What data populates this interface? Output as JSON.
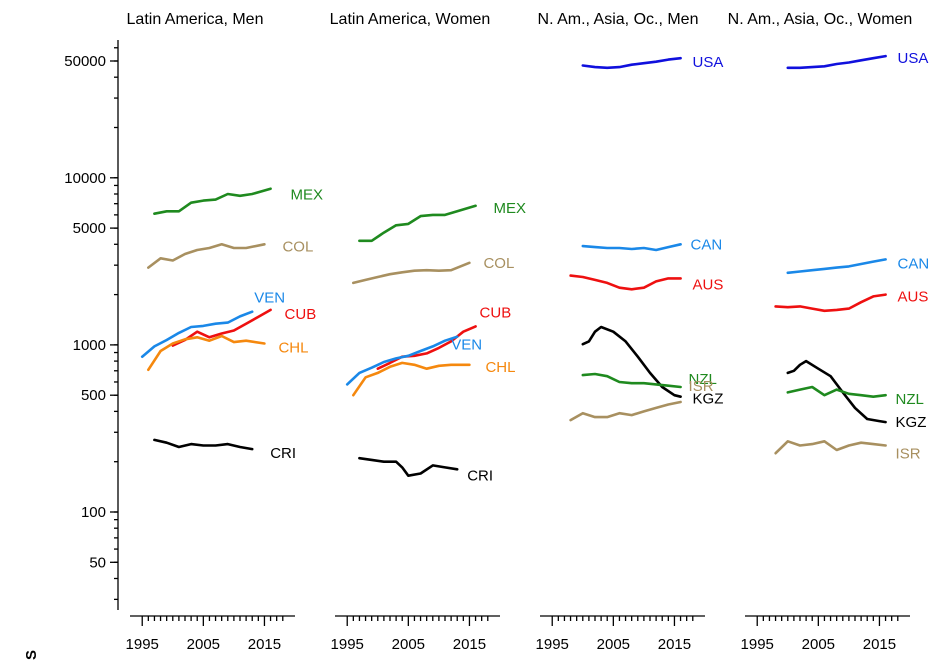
{
  "chart_data": {
    "type": "line",
    "y_scale": "log",
    "ylim": [
      25,
      90000
    ],
    "y_ticks": [
      {
        "value": 50000,
        "label": "50000"
      },
      {
        "value": 10000,
        "label": "10000"
      },
      {
        "value": 5000,
        "label": "5000"
      },
      {
        "value": 1000,
        "label": "1000"
      },
      {
        "value": 500,
        "label": "500"
      },
      {
        "value": 100,
        "label": "100"
      },
      {
        "value": 50,
        "label": "50"
      }
    ],
    "x_ticks": [
      {
        "value": 1995,
        "label": "1995"
      },
      {
        "value": 2005,
        "label": "2005"
      },
      {
        "value": 2015,
        "label": "2015"
      }
    ],
    "xlim": [
      1993,
      2020
    ],
    "grid": false,
    "y_axis_label_fragment": "S",
    "panels": [
      {
        "title": "Latin America, Men",
        "series": [
          {
            "name": "MEX",
            "color": "#1f8a1f",
            "x": [
              1997,
              1999,
              2001,
              2003,
              2005,
              2007,
              2009,
              2011,
              2013,
              2016
            ],
            "y": [
              6100,
              6300,
              6300,
              7100,
              7300,
              7400,
              8000,
              7800,
              8000,
              8600
            ]
          },
          {
            "name": "COL",
            "color": "#a89060",
            "x": [
              1996,
              1998,
              2000,
              2002,
              2004,
              2006,
              2008,
              2010,
              2012,
              2015
            ],
            "y": [
              2900,
              3300,
              3200,
              3500,
              3700,
              3800,
              4000,
              3800,
              3800,
              4000
            ]
          },
          {
            "name": "VEN",
            "color": "#1a88e8",
            "x": [
              1995,
              1997,
              1999,
              2001,
              2003,
              2005,
              2007,
              2009,
              2011,
              2013
            ],
            "y": [
              850,
              980,
              1070,
              1180,
              1280,
              1300,
              1340,
              1360,
              1480,
              1580
            ]
          },
          {
            "name": "CUB",
            "color": "#ee1010",
            "x": [
              2000,
              2002,
              2004,
              2006,
              2008,
              2010,
              2012,
              2014,
              2016
            ],
            "y": [
              990,
              1070,
              1200,
              1110,
              1170,
              1220,
              1340,
              1470,
              1620
            ]
          },
          {
            "name": "CHL",
            "color": "#f5880e",
            "x": [
              1996,
              1998,
              2000,
              2002,
              2004,
              2006,
              2008,
              2010,
              2012,
              2015
            ],
            "y": [
              710,
              920,
              1020,
              1080,
              1110,
              1060,
              1130,
              1040,
              1060,
              1020
            ]
          },
          {
            "name": "CRI",
            "color": "#000000",
            "x": [
              1997,
              1999,
              2001,
              2003,
              2005,
              2007,
              2009,
              2011,
              2013
            ],
            "y": [
              270,
              260,
              245,
              255,
              250,
              250,
              255,
              245,
              238
            ]
          }
        ]
      },
      {
        "title": "Latin America, Women",
        "series": [
          {
            "name": "MEX",
            "color": "#1f8a1f",
            "x": [
              1997,
              1999,
              2001,
              2003,
              2005,
              2007,
              2009,
              2011,
              2013,
              2016
            ],
            "y": [
              4200,
              4200,
              4700,
              5200,
              5300,
              5900,
              6000,
              6000,
              6300,
              6800
            ]
          },
          {
            "name": "COL",
            "color": "#a89060",
            "x": [
              1996,
              1998,
              2000,
              2002,
              2004,
              2006,
              2008,
              2010,
              2012,
              2015
            ],
            "y": [
              2350,
              2450,
              2550,
              2650,
              2720,
              2780,
              2800,
              2780,
              2800,
              3100
            ]
          },
          {
            "name": "CUB",
            "color": "#ee1010",
            "x": [
              2000,
              2002,
              2004,
              2006,
              2008,
              2010,
              2012,
              2014,
              2016
            ],
            "y": [
              720,
              780,
              850,
              860,
              890,
              960,
              1050,
              1200,
              1290
            ]
          },
          {
            "name": "VEN",
            "color": "#1a88e8",
            "x": [
              1995,
              1997,
              1999,
              2001,
              2003,
              2005,
              2007,
              2009,
              2011,
              2013
            ],
            "y": [
              580,
              680,
              730,
              790,
              830,
              860,
              920,
              980,
              1060,
              1120
            ]
          },
          {
            "name": "CHL",
            "color": "#f5880e",
            "x": [
              1996,
              1998,
              2000,
              2002,
              2004,
              2006,
              2008,
              2010,
              2012,
              2015
            ],
            "y": [
              500,
              640,
              680,
              740,
              780,
              760,
              720,
              750,
              760,
              760
            ]
          },
          {
            "name": "CRI",
            "color": "#000000",
            "x": [
              1997,
              1999,
              2001,
              2003,
              2004,
              2005,
              2007,
              2009,
              2011,
              2013
            ],
            "y": [
              210,
              205,
              200,
              200,
              185,
              165,
              170,
              190,
              185,
              180
            ]
          }
        ]
      },
      {
        "title": "N. Am., Asia, Oc., Men",
        "series": [
          {
            "name": "USA",
            "color": "#1010dd",
            "x": [
              2000,
              2002,
              2004,
              2006,
              2008,
              2010,
              2012,
              2014,
              2016
            ],
            "y": [
              47000,
              46000,
              45500,
              46000,
              47500,
              48500,
              49500,
              51000,
              52000
            ]
          },
          {
            "name": "CAN",
            "color": "#1a88e8",
            "x": [
              2000,
              2002,
              2004,
              2006,
              2008,
              2010,
              2012,
              2014,
              2016
            ],
            "y": [
              3900,
              3850,
              3800,
              3800,
              3750,
              3800,
              3700,
              3850,
              4000
            ]
          },
          {
            "name": "AUS",
            "color": "#ee1010",
            "x": [
              1998,
              2000,
              2002,
              2004,
              2006,
              2008,
              2010,
              2012,
              2014,
              2016
            ],
            "y": [
              2600,
              2550,
              2450,
              2350,
              2200,
              2150,
              2200,
              2400,
              2500,
              2500
            ]
          },
          {
            "name": "KGZ",
            "color": "#000000",
            "x": [
              2000,
              2001,
              2002,
              2003,
              2005,
              2007,
              2009,
              2011,
              2013,
              2015,
              2016
            ],
            "y": [
              1010,
              1050,
              1200,
              1280,
              1200,
              1050,
              850,
              680,
              560,
              500,
              490
            ]
          },
          {
            "name": "NZL",
            "color": "#1f8a1f",
            "x": [
              2000,
              2002,
              2004,
              2006,
              2008,
              2010,
              2012,
              2014,
              2016
            ],
            "y": [
              660,
              670,
              650,
              600,
              590,
              590,
              580,
              570,
              560
            ]
          },
          {
            "name": "ISR",
            "color": "#a89060",
            "x": [
              1998,
              2000,
              2002,
              2004,
              2006,
              2008,
              2010,
              2012,
              2014,
              2016
            ],
            "y": [
              355,
              390,
              370,
              370,
              390,
              380,
              400,
              420,
              440,
              455
            ]
          }
        ]
      },
      {
        "title": "N. Am., Asia, Oc., Women",
        "series": [
          {
            "name": "USA",
            "color": "#1010dd",
            "x": [
              2000,
              2002,
              2004,
              2006,
              2008,
              2010,
              2012,
              2014,
              2016
            ],
            "y": [
              45500,
              45500,
              46000,
              46500,
              48000,
              49000,
              50500,
              52000,
              53500
            ]
          },
          {
            "name": "CAN",
            "color": "#1a88e8",
            "x": [
              2000,
              2002,
              2004,
              2006,
              2008,
              2010,
              2012,
              2014,
              2016
            ],
            "y": [
              2700,
              2750,
              2800,
              2850,
              2900,
              2950,
              3050,
              3150,
              3250
            ]
          },
          {
            "name": "AUS",
            "color": "#ee1010",
            "x": [
              1998,
              2000,
              2002,
              2004,
              2006,
              2008,
              2010,
              2012,
              2014,
              2016
            ],
            "y": [
              1700,
              1680,
              1700,
              1650,
              1600,
              1620,
              1650,
              1800,
              1950,
              2000
            ]
          },
          {
            "name": "KGZ",
            "color": "#000000",
            "x": [
              2000,
              2001,
              2002,
              2003,
              2005,
              2007,
              2009,
              2011,
              2013,
              2015,
              2016
            ],
            "y": [
              680,
              700,
              760,
              800,
              720,
              650,
              520,
              420,
              360,
              350,
              345
            ]
          },
          {
            "name": "NZL",
            "color": "#1f8a1f",
            "x": [
              2000,
              2002,
              2004,
              2006,
              2008,
              2010,
              2012,
              2014,
              2016
            ],
            "y": [
              520,
              540,
              560,
              500,
              540,
              510,
              500,
              490,
              500
            ]
          },
          {
            "name": "ISR",
            "color": "#a89060",
            "x": [
              1998,
              2000,
              2002,
              2004,
              2006,
              2008,
              2010,
              2012,
              2014,
              2016
            ],
            "y": [
              225,
              265,
              250,
              255,
              265,
              235,
              250,
              260,
              255,
              250
            ]
          }
        ]
      }
    ]
  }
}
